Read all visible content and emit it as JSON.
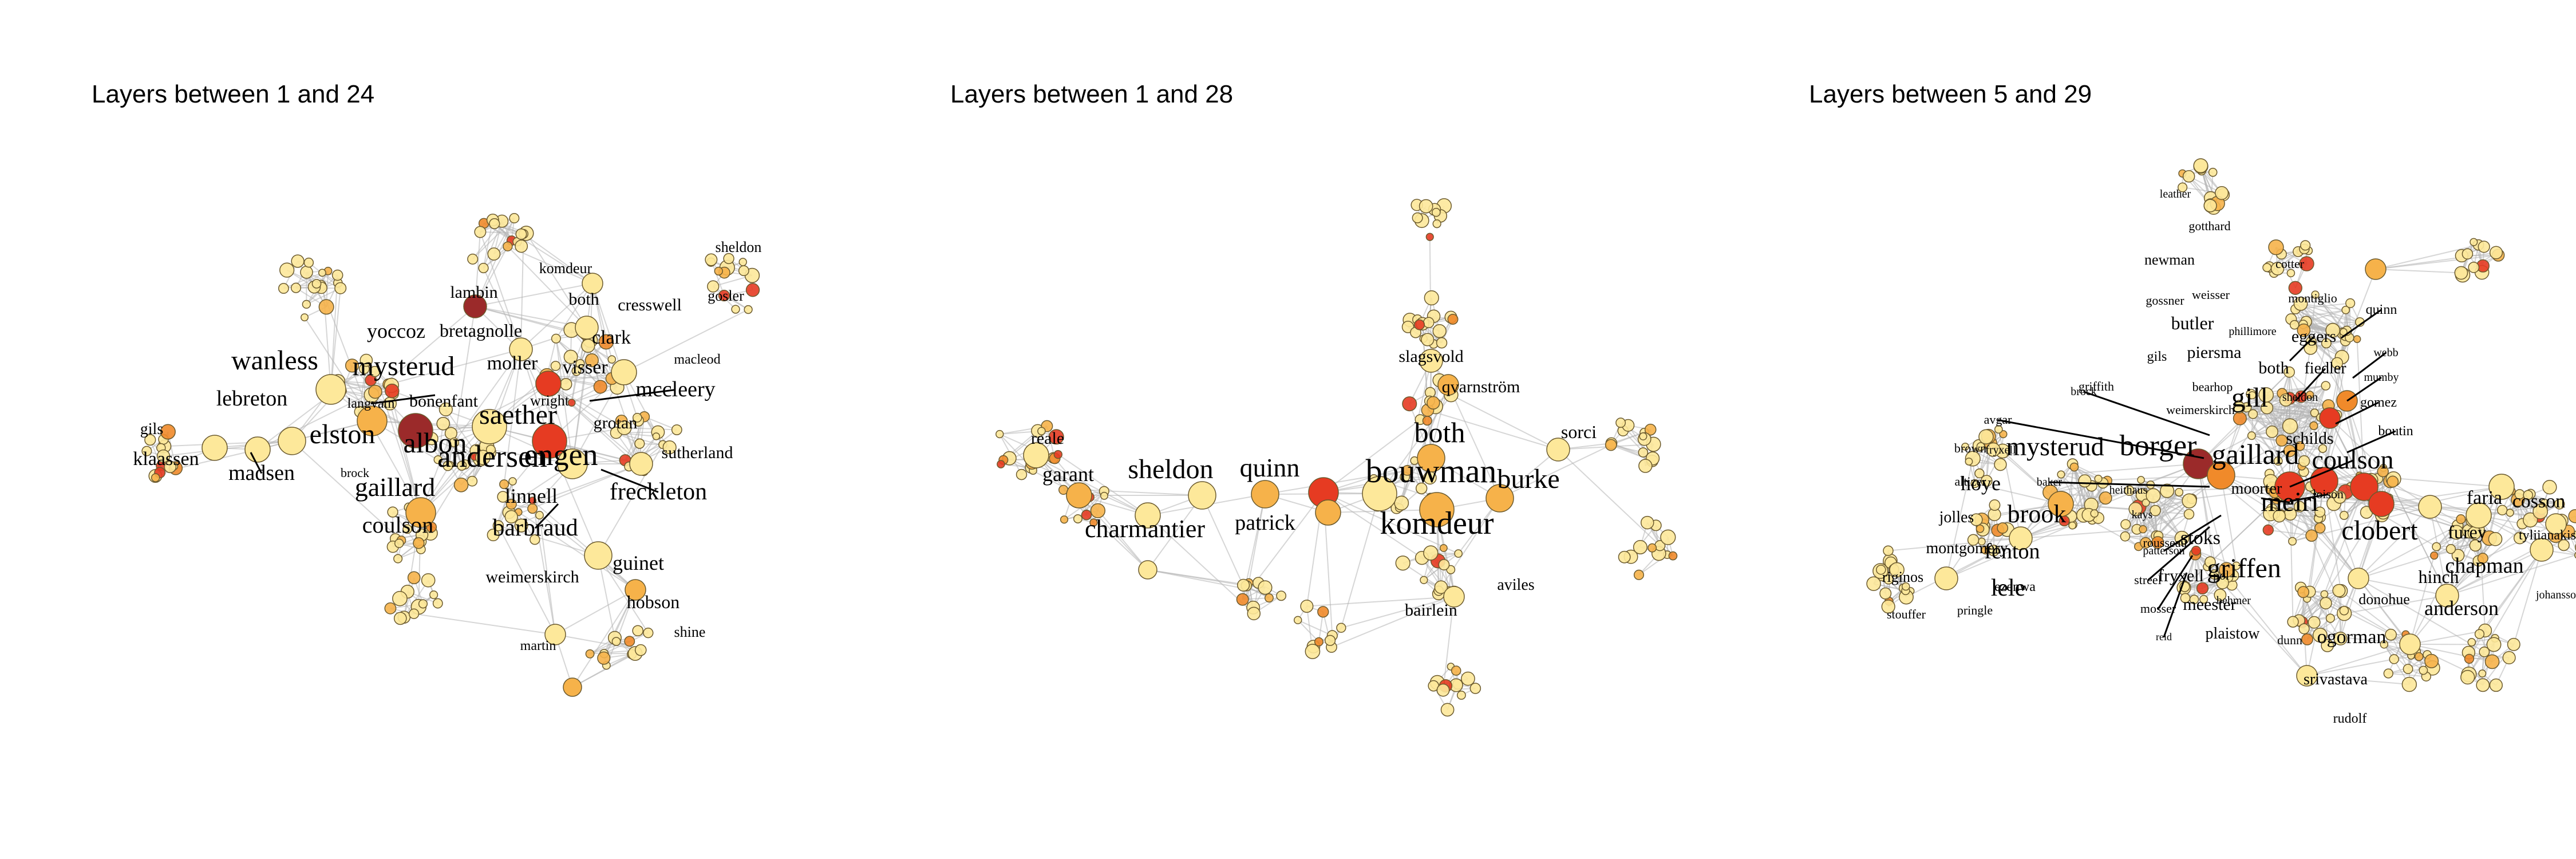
{
  "panels": [
    {
      "title": "Layers between 1 and 24",
      "labels": [
        "lambin",
        "sheldon",
        "komdeur",
        "gosler",
        "both",
        "cresswell",
        "bretagnolle",
        "yoccoz",
        "clark",
        "macleod",
        "wanless",
        "mysterud",
        "moller",
        "visser",
        "mccleery",
        "lebreton",
        "langvatn",
        "bonenfant",
        "wright",
        "grotan",
        "gils",
        "elston",
        "saether",
        "sutherland",
        "klaassen",
        "madsen",
        "albon",
        "andersen",
        "engen",
        "brock",
        "gaillard",
        "linnell",
        "freckleton",
        "coulson",
        "barbraud",
        "weimerskirch",
        "guinet",
        "hobson",
        "shine",
        "martin"
      ]
    },
    {
      "title": "Layers between 1 and 28",
      "labels": [
        "slagsvold",
        "qvarnström",
        "sorci",
        "reale",
        "garant",
        "sheldon",
        "quinn",
        "both",
        "bouwman",
        "burke",
        "charmantier",
        "patrick",
        "komdeur",
        "aviles",
        "bairlein"
      ]
    },
    {
      "title": "Layers between 5 and 29",
      "labels": [
        "leather",
        "gotthard",
        "newman",
        "cotter",
        "gossner",
        "weisser",
        "montiglio",
        "quinn",
        "butler",
        "phillimore",
        "eggers",
        "webb",
        "gils",
        "piersma",
        "both",
        "fiedler",
        "griffith",
        "bearhop",
        "mumby",
        "brock",
        "weimerskirch",
        "sheldon",
        "gomez",
        "avgar",
        "gill",
        "boutin",
        "brown",
        "fryxell",
        "schilds",
        "mysterud",
        "borger",
        "gaillard",
        "coulson",
        "altizer",
        "baker",
        "heithaus",
        "moorter",
        "loison",
        "hoye",
        "faria",
        "cosson",
        "jolles",
        "brook",
        "kays",
        "meiri",
        "clobert",
        "furey",
        "tyliianakis",
        "montgomery",
        "fenton",
        "rousseau",
        "stoks",
        "chapman",
        "griffen",
        "riginos",
        "ezenwa",
        "patterson",
        "fryxell",
        "pol",
        "hinch",
        "lele",
        "streel",
        "johansson",
        "stouffer",
        "pringle",
        "mosser",
        "meester",
        "behmer",
        "donohue",
        "anderson",
        "reid",
        "plaistow",
        "dunn",
        "ogorman",
        "srivastava",
        "rudolf"
      ]
    }
  ],
  "colors": {
    "edge": "#b5b5b5",
    "node_light": "#fde89a",
    "node_mid": "#f6b24a",
    "node_orange": "#f08a2a",
    "node_red": "#e63b22",
    "node_dark": "#9b2a2a"
  }
}
